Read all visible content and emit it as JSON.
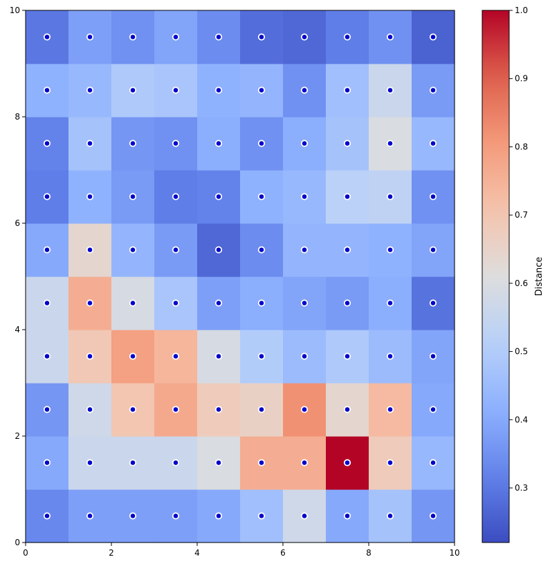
{
  "chart_data": {
    "type": "heatmap",
    "title": "",
    "xlabel": "",
    "ylabel": "",
    "xlim": [
      0,
      10
    ],
    "ylim": [
      0,
      10
    ],
    "xticks": [
      "0",
      "2",
      "4",
      "6",
      "8",
      "10"
    ],
    "yticks": [
      "0",
      "2",
      "4",
      "6",
      "8",
      "10"
    ],
    "colormap": "coolwarm",
    "colorbar": {
      "label": "Distance",
      "min": 0.22,
      "max": 1.0,
      "ticks": [
        "0.3",
        "0.4",
        "0.5",
        "0.6",
        "0.7",
        "0.8",
        "0.9",
        "1.0"
      ]
    },
    "rows_bottom_to_top": [
      [
        0.33,
        0.38,
        0.38,
        0.38,
        0.4,
        0.46,
        0.57,
        0.4,
        0.47,
        0.36
      ],
      [
        0.4,
        0.56,
        0.56,
        0.56,
        0.6,
        0.76,
        0.76,
        1.0,
        0.68,
        0.44
      ],
      [
        0.36,
        0.57,
        0.7,
        0.77,
        0.68,
        0.66,
        0.82,
        0.64,
        0.73,
        0.4
      ],
      [
        0.56,
        0.69,
        0.79,
        0.74,
        0.59,
        0.5,
        0.45,
        0.49,
        0.45,
        0.39
      ],
      [
        0.56,
        0.76,
        0.59,
        0.48,
        0.38,
        0.41,
        0.39,
        0.37,
        0.41,
        0.29
      ],
      [
        0.4,
        0.64,
        0.43,
        0.37,
        0.27,
        0.34,
        0.43,
        0.43,
        0.42,
        0.39
      ],
      [
        0.31,
        0.42,
        0.37,
        0.31,
        0.32,
        0.42,
        0.44,
        0.52,
        0.53,
        0.35
      ],
      [
        0.32,
        0.47,
        0.36,
        0.35,
        0.41,
        0.35,
        0.41,
        0.47,
        0.6,
        0.44
      ],
      [
        0.42,
        0.44,
        0.49,
        0.48,
        0.42,
        0.43,
        0.35,
        0.46,
        0.56,
        0.37
      ],
      [
        0.3,
        0.38,
        0.35,
        0.39,
        0.34,
        0.28,
        0.27,
        0.31,
        0.35,
        0.26
      ]
    ],
    "markers": {
      "positions": "cell-centers",
      "fill": "#0000cc",
      "edge": "#ffffff"
    }
  }
}
